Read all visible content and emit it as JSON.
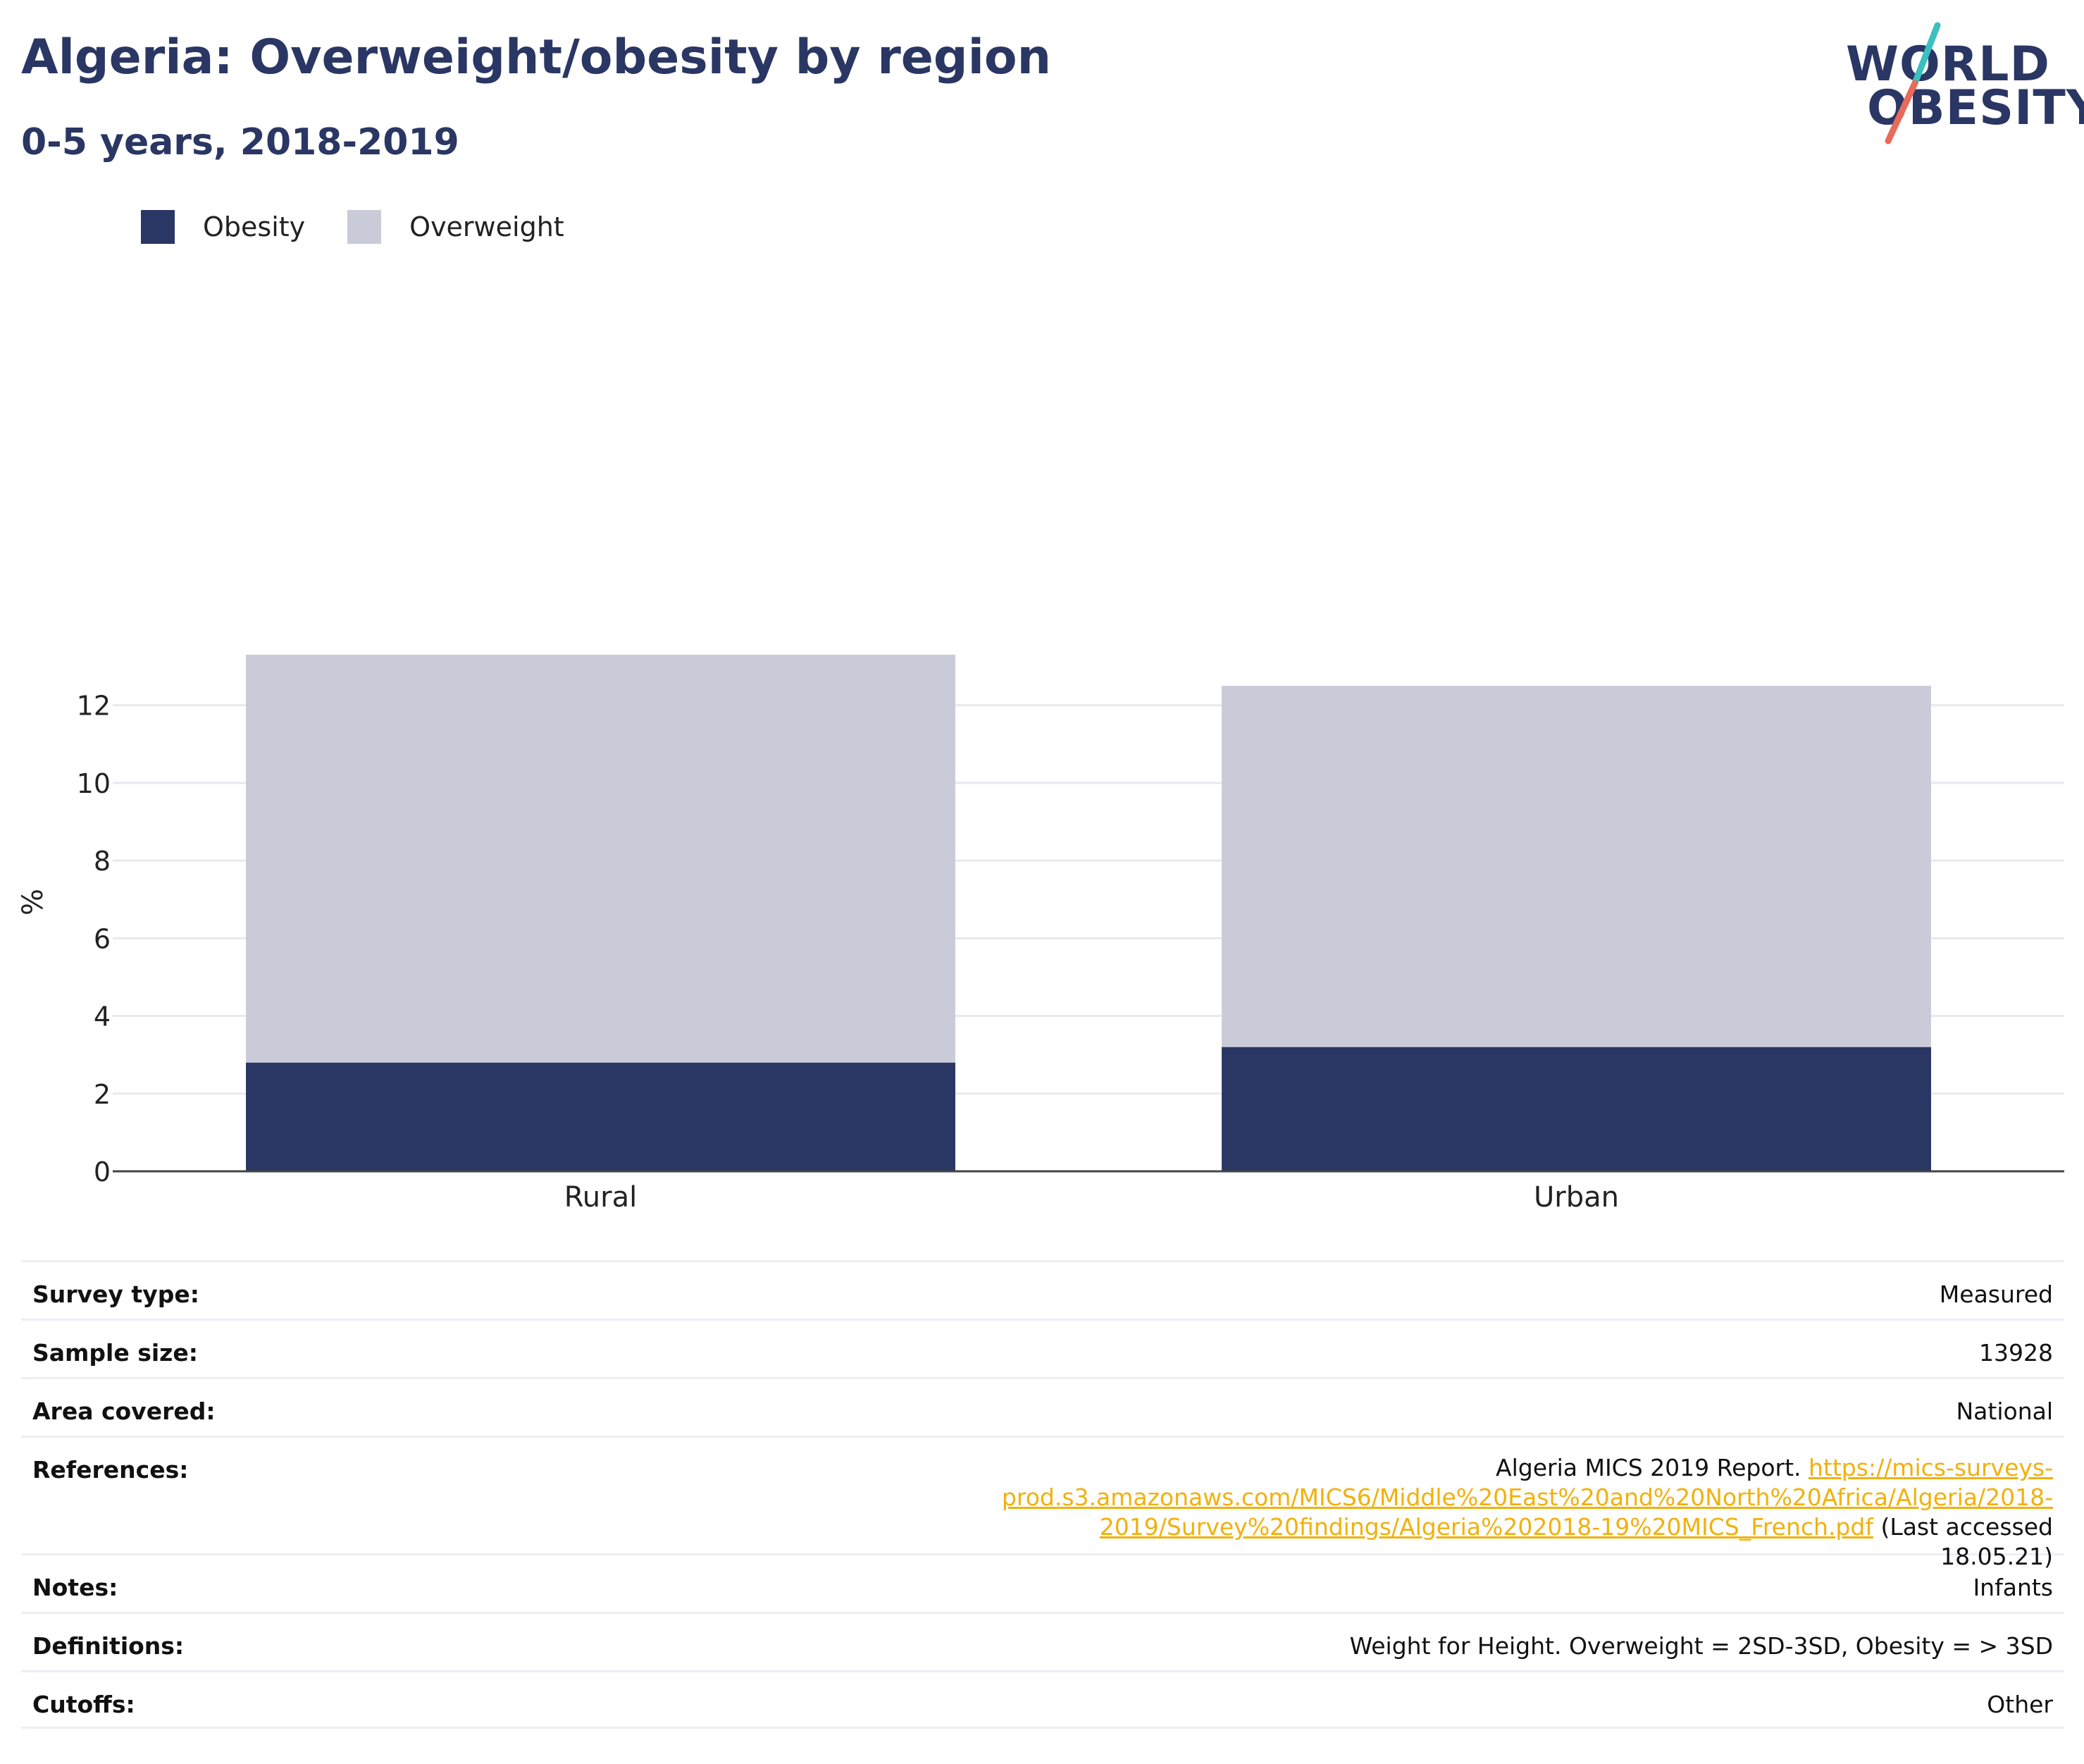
{
  "header": {
    "title": "Algeria: Overweight/obesity by region",
    "subtitle": "0-5 years, 2018-2019"
  },
  "logo": {
    "line1": "WORLD",
    "line2": "OBESITY"
  },
  "colors": {
    "obesity": "#2a3663",
    "overweight": "#c9ccd8",
    "link": "#f1b10c",
    "logo_teal": "#3bbfbf",
    "logo_coral": "#e86a5a"
  },
  "chart_data": {
    "type": "bar",
    "stacked": true,
    "categories": [
      "Rural",
      "Urban"
    ],
    "series": [
      {
        "name": "Obesity",
        "values": [
          2.8,
          3.2
        ]
      },
      {
        "name": "Overweight",
        "values": [
          10.5,
          9.3
        ]
      }
    ],
    "xlabel": "",
    "ylabel": "%",
    "ylim": [
      0,
      13.5
    ],
    "yticks": [
      0,
      2,
      4,
      6,
      8,
      10,
      12
    ],
    "grid": true,
    "legend_position": "top-left"
  },
  "meta": {
    "survey_type": {
      "label": "Survey type:",
      "value": "Measured"
    },
    "sample_size": {
      "label": "Sample size:",
      "value": "13928"
    },
    "area_covered": {
      "label": "Area covered:",
      "value": "National"
    },
    "references": {
      "label": "References:",
      "prefix": "Algeria MICS 2019 Report. ",
      "link": "https://mics-surveys-prod.s3.amazonaws.com/MICS6/Middle%20East%20and%20North%20Africa/Algeria/2018-2019/Survey%20findings/Algeria%202018-19%20MICS_French.pdf",
      "suffix": " (Last accessed 18.05.21)"
    },
    "notes": {
      "label": "Notes:",
      "value": "Infants"
    },
    "definitions": {
      "label": "Definitions:",
      "value": "Weight for Height. Overweight = 2SD-3SD, Obesity = > 3SD"
    },
    "cutoffs": {
      "label": "Cutoffs:",
      "value": "Other"
    }
  }
}
